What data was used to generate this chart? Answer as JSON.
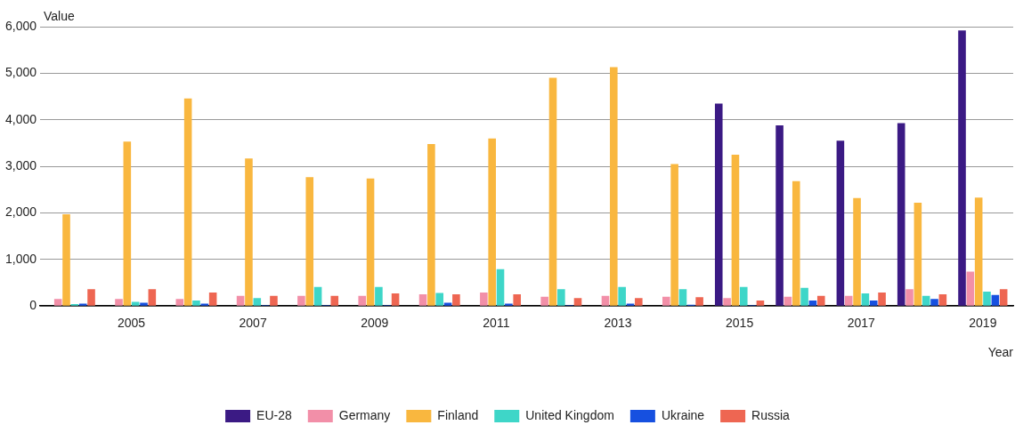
{
  "chart_data": {
    "type": "bar",
    "xlabel": "Year",
    "ylabel": "Value",
    "categories": [
      null,
      "2005",
      null,
      "2007",
      null,
      "2009",
      null,
      "2011",
      null,
      "2013",
      null,
      "2015",
      null,
      "2017",
      null,
      "2019"
    ],
    "series": [
      {
        "name": "EU-28",
        "color": "#3b1a84",
        "values": [
          null,
          null,
          null,
          null,
          null,
          null,
          null,
          null,
          null,
          null,
          null,
          4350,
          3880,
          3550,
          3930,
          5920
        ]
      },
      {
        "name": "Germany",
        "color": "#f28fa8",
        "values": [
          150,
          150,
          150,
          220,
          220,
          220,
          250,
          290,
          200,
          220,
          200,
          170,
          200,
          220,
          360,
          740
        ]
      },
      {
        "name": "Finland",
        "color": "#f9b73f",
        "values": [
          1970,
          3530,
          4460,
          3170,
          2770,
          2740,
          3480,
          3600,
          4900,
          5130,
          3050,
          3250,
          2680,
          2320,
          2220,
          2330
        ]
      },
      {
        "name": "United Kingdom",
        "color": "#3ed6c8",
        "values": [
          40,
          90,
          120,
          170,
          410,
          410,
          280,
          790,
          360,
          410,
          360,
          410,
          390,
          270,
          220,
          310
        ]
      },
      {
        "name": "Ukraine",
        "color": "#1650e0",
        "values": [
          50,
          70,
          50,
          20,
          20,
          20,
          70,
          50,
          20,
          50,
          30,
          20,
          120,
          120,
          150,
          240
        ]
      },
      {
        "name": "Russia",
        "color": "#ee6652",
        "values": [
          360,
          360,
          290,
          220,
          220,
          270,
          250,
          250,
          170,
          170,
          190,
          120,
          220,
          290,
          250,
          360
        ]
      }
    ],
    "ylim": [
      0,
      6000
    ],
    "yticks": [
      0,
      {
        "value": 1000,
        "label": "1,000"
      },
      {
        "value": 2000,
        "label": "2,000"
      },
      {
        "value": 3000,
        "label": "3,000"
      },
      {
        "value": 4000,
        "label": "4,000"
      },
      {
        "value": 5000,
        "label": "5,000"
      },
      {
        "value": 6000,
        "label": "6,000"
      }
    ],
    "grid": "y",
    "legend": "bottom"
  }
}
